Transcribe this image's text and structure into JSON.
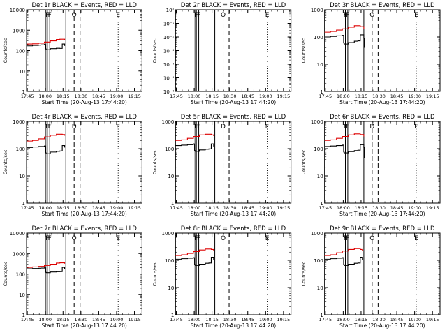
{
  "colors": {
    "events": "#000000",
    "lld": "#dd0000",
    "axis": "#000000",
    "background": "#ffffff"
  },
  "chart_data": [
    {
      "type": "line",
      "title": "Det 1r  BLACK = Events, RED = LLD",
      "ylabel": "Counts/sec",
      "xlabel": "Start Time (20-Aug-13 17:44:20)",
      "x_ticks": [
        "17:45",
        "18:00",
        "18:15",
        "18:30",
        "18:45",
        "19:00",
        "19:15"
      ],
      "y_ticks": [
        "1",
        "10",
        "100",
        "1000",
        "10000"
      ],
      "ylim": [
        1,
        10000
      ],
      "xlim_minutes": [
        0,
        97
      ],
      "markers": [
        {
          "label": "F",
          "t": 17.5,
          "style": "solid"
        },
        {
          "label": "F",
          "t": 19.5,
          "style": "solid"
        },
        {
          "label": "",
          "t": 33,
          "style": "solid"
        },
        {
          "label": "O",
          "t": 40,
          "style": "dashed"
        },
        {
          "label": "",
          "t": 45,
          "style": "dashed"
        },
        {
          "label": "E",
          "t": 77,
          "style": "dotted"
        }
      ],
      "series": [
        {
          "name": "Events",
          "t": [
            0,
            5,
            10,
            12,
            15,
            16,
            16.5,
            20,
            25,
            28,
            30,
            32
          ],
          "values": [
            170,
            180,
            185,
            190,
            200,
            120,
            110,
            125,
            130,
            128,
            210,
            170
          ]
        },
        {
          "name": "LLD",
          "t": [
            0,
            5,
            10,
            15,
            20,
            25,
            28,
            32
          ],
          "values": [
            210,
            215,
            230,
            260,
            300,
            350,
            360,
            320
          ]
        }
      ]
    },
    {
      "type": "line",
      "title": "Det 2r  BLACK = Events, RED = LLD",
      "ylabel": "Counts/sec",
      "xlabel": "Start Time (20-Aug-13 17:44:20)",
      "x_ticks": [
        "17:45",
        "18:00",
        "18:15",
        "18:30",
        "18:45",
        "19:00",
        "19:15"
      ],
      "y_ticks": [
        "10⁻⁶",
        "10⁻⁵",
        "10⁻⁴",
        "10⁻³",
        "10⁻²",
        "10⁻¹",
        "10⁰"
      ],
      "ylim": [
        1e-06,
        1
      ],
      "xlim_minutes": [
        0,
        97
      ],
      "markers": [
        {
          "label": "F",
          "t": 17.5,
          "style": "solid"
        },
        {
          "label": "F",
          "t": 19.5,
          "style": "solid"
        },
        {
          "label": "",
          "t": 33,
          "style": "solid"
        },
        {
          "label": "O",
          "t": 40,
          "style": "dashed"
        },
        {
          "label": "",
          "t": 45,
          "style": "dashed"
        },
        {
          "label": "E",
          "t": 77,
          "style": "dotted"
        }
      ],
      "series": []
    },
    {
      "type": "line",
      "title": "Det 3r  BLACK = Events, RED = LLD",
      "ylabel": "Counts/sec",
      "xlabel": "Start Time (20-Aug-13 17:44:20)",
      "x_ticks": [
        "17:45",
        "18:00",
        "18:15",
        "18:30",
        "18:45",
        "19:00",
        "19:15"
      ],
      "y_ticks": [
        "1",
        "10",
        "100",
        "1000"
      ],
      "ylim": [
        1,
        1000
      ],
      "xlim_minutes": [
        0,
        97
      ],
      "markers": [
        {
          "label": "F",
          "t": 17.5,
          "style": "solid"
        },
        {
          "label": "F",
          "t": 19.5,
          "style": "solid"
        },
        {
          "label": "",
          "t": 33,
          "style": "solid"
        },
        {
          "label": "O",
          "t": 40,
          "style": "dashed"
        },
        {
          "label": "",
          "t": 45,
          "style": "dashed"
        },
        {
          "label": "E",
          "t": 77,
          "style": "dotted"
        }
      ],
      "series": [
        {
          "name": "Events",
          "t": [
            0,
            5,
            10,
            15,
            16,
            16.5,
            20,
            25,
            28,
            30,
            33,
            33.5
          ],
          "values": [
            100,
            105,
            110,
            115,
            60,
            55,
            62,
            70,
            72,
            120,
            90,
            40
          ]
        },
        {
          "name": "LLD",
          "t": [
            0,
            5,
            10,
            15,
            20,
            25,
            30,
            33
          ],
          "values": [
            150,
            160,
            180,
            200,
            230,
            260,
            240,
            200
          ]
        }
      ]
    },
    {
      "type": "line",
      "title": "Det 4r  BLACK = Events, RED = LLD",
      "ylabel": "Counts/sec",
      "xlabel": "Start Time (20-Aug-13 17:44:20)",
      "x_ticks": [
        "17:45",
        "18:00",
        "18:15",
        "18:30",
        "18:45",
        "19:00",
        "19:15"
      ],
      "y_ticks": [
        "1",
        "10",
        "100",
        "1000"
      ],
      "ylim": [
        1,
        1000
      ],
      "xlim_minutes": [
        0,
        97
      ],
      "markers": [
        {
          "label": "F",
          "t": 17.5,
          "style": "solid"
        },
        {
          "label": "F",
          "t": 19.5,
          "style": "solid"
        },
        {
          "label": "",
          "t": 33,
          "style": "solid"
        },
        {
          "label": "D",
          "t": 40,
          "style": "dashed"
        },
        {
          "label": "",
          "t": 45,
          "style": "dashed"
        },
        {
          "label": "E",
          "t": 77,
          "style": "dotted"
        }
      ],
      "series": [
        {
          "name": "Events",
          "t": [
            0,
            5,
            10,
            15,
            16,
            16.5,
            20,
            25,
            28,
            30,
            32
          ],
          "values": [
            110,
            115,
            120,
            125,
            70,
            65,
            75,
            80,
            82,
            130,
            110
          ]
        },
        {
          "name": "LLD",
          "t": [
            0,
            5,
            10,
            15,
            20,
            25,
            30,
            32
          ],
          "values": [
            190,
            200,
            230,
            270,
            310,
            340,
            330,
            300
          ]
        }
      ]
    },
    {
      "type": "line",
      "title": "Det 5r  BLACK = Events, RED = LLD",
      "ylabel": "Counts/sec",
      "xlabel": "Start Time (20-Aug-13 17:44:20)",
      "x_ticks": [
        "17:45",
        "18:00",
        "18:15",
        "18:30",
        "18:45",
        "19:00",
        "19:15"
      ],
      "y_ticks": [
        "1",
        "10",
        "100",
        "1000"
      ],
      "ylim": [
        1,
        1000
      ],
      "xlim_minutes": [
        0,
        97
      ],
      "markers": [
        {
          "label": "F",
          "t": 17.5,
          "style": "solid"
        },
        {
          "label": "F",
          "t": 19.5,
          "style": "solid"
        },
        {
          "label": "",
          "t": 33,
          "style": "solid"
        },
        {
          "label": "D",
          "t": 40,
          "style": "dashed"
        },
        {
          "label": "",
          "t": 45,
          "style": "dashed"
        },
        {
          "label": "E",
          "t": 77,
          "style": "dotted"
        }
      ],
      "series": [
        {
          "name": "Events",
          "t": [
            0,
            5,
            10,
            15,
            16,
            16.5,
            20,
            25,
            28,
            30,
            32
          ],
          "values": [
            130,
            135,
            140,
            150,
            85,
            80,
            90,
            95,
            98,
            150,
            120
          ]
        },
        {
          "name": "LLD",
          "t": [
            0,
            5,
            10,
            15,
            20,
            25,
            30,
            32
          ],
          "values": [
            200,
            210,
            240,
            280,
            320,
            340,
            320,
            290
          ]
        }
      ]
    },
    {
      "type": "line",
      "title": "Det 6r  BLACK = Events, RED = LLD",
      "ylabel": "Counts/sec",
      "xlabel": "Start Time (20-Aug-13 17:44:20)",
      "x_ticks": [
        "17:45",
        "18:00",
        "18:15",
        "18:30",
        "18:45",
        "19:00",
        "19:15"
      ],
      "y_ticks": [
        "1",
        "10",
        "100",
        "1000"
      ],
      "ylim": [
        1,
        1000
      ],
      "xlim_minutes": [
        0,
        97
      ],
      "markers": [
        {
          "label": "F",
          "t": 17.5,
          "style": "solid"
        },
        {
          "label": "F",
          "t": 19.5,
          "style": "solid"
        },
        {
          "label": "",
          "t": 33,
          "style": "solid"
        },
        {
          "label": "D",
          "t": 40,
          "style": "dashed"
        },
        {
          "label": "",
          "t": 45,
          "style": "dashed"
        },
        {
          "label": "E",
          "t": 77,
          "style": "dotted"
        }
      ],
      "series": [
        {
          "name": "Events",
          "t": [
            0,
            5,
            10,
            15,
            16,
            16.5,
            20,
            25,
            28,
            30,
            33,
            33.5
          ],
          "values": [
            120,
            125,
            130,
            135,
            75,
            70,
            78,
            85,
            88,
            140,
            110,
            45
          ]
        },
        {
          "name": "LLD",
          "t": [
            0,
            5,
            10,
            15,
            20,
            25,
            30,
            33
          ],
          "values": [
            200,
            210,
            240,
            280,
            320,
            350,
            330,
            280
          ]
        }
      ]
    },
    {
      "type": "line",
      "title": "Det 7r  BLACK = Events, RED = LLD",
      "ylabel": "Counts/sec",
      "xlabel": "Start Time (20-Aug-13 17:44:20)",
      "x_ticks": [
        "17:45",
        "18:00",
        "18:15",
        "18:30",
        "18:45",
        "19:00",
        "19:15"
      ],
      "y_ticks": [
        "1",
        "10",
        "100",
        "1000",
        "10000"
      ],
      "ylim": [
        1,
        10000
      ],
      "xlim_minutes": [
        0,
        97
      ],
      "markers": [
        {
          "label": "F",
          "t": 17.5,
          "style": "solid"
        },
        {
          "label": "F",
          "t": 19.5,
          "style": "solid"
        },
        {
          "label": "",
          "t": 33,
          "style": "solid"
        },
        {
          "label": "O",
          "t": 40,
          "style": "dashed"
        },
        {
          "label": "",
          "t": 45,
          "style": "dashed"
        },
        {
          "label": "E",
          "t": 77,
          "style": "dotted"
        }
      ],
      "series": [
        {
          "name": "Events",
          "t": [
            0,
            5,
            10,
            12,
            15,
            16,
            16.5,
            20,
            25,
            28,
            30,
            32
          ],
          "values": [
            180,
            185,
            190,
            195,
            200,
            120,
            115,
            125,
            128,
            130,
            210,
            170
          ]
        },
        {
          "name": "LLD",
          "t": [
            0,
            5,
            10,
            15,
            20,
            25,
            28,
            32
          ],
          "values": [
            210,
            220,
            235,
            260,
            300,
            340,
            350,
            320
          ]
        }
      ]
    },
    {
      "type": "line",
      "title": "Det 8r  BLACK = Events, RED = LLD",
      "ylabel": "Counts/sec",
      "xlabel": "Start Time (20-Aug-13 17:44:20)",
      "x_ticks": [
        "17:45",
        "18:00",
        "18:15",
        "18:30",
        "18:45",
        "19:00",
        "19:15"
      ],
      "y_ticks": [
        "1",
        "10",
        "100",
        "1000"
      ],
      "ylim": [
        1,
        1000
      ],
      "xlim_minutes": [
        0,
        97
      ],
      "markers": [
        {
          "label": "F",
          "t": 17.5,
          "style": "solid"
        },
        {
          "label": "F",
          "t": 19.5,
          "style": "solid"
        },
        {
          "label": "",
          "t": 33,
          "style": "solid"
        },
        {
          "label": "O",
          "t": 40,
          "style": "dashed"
        },
        {
          "label": "",
          "t": 45,
          "style": "dashed"
        },
        {
          "label": "E",
          "t": 77,
          "style": "dotted"
        }
      ],
      "series": [
        {
          "name": "Events",
          "t": [
            0,
            5,
            10,
            15,
            16,
            16.5,
            20,
            25,
            28,
            30,
            32
          ],
          "values": [
            110,
            115,
            120,
            125,
            70,
            65,
            72,
            78,
            80,
            130,
            100
          ]
        },
        {
          "name": "LLD",
          "t": [
            0,
            5,
            10,
            15,
            20,
            25,
            30,
            32
          ],
          "values": [
            150,
            160,
            180,
            210,
            240,
            260,
            250,
            220
          ]
        }
      ]
    },
    {
      "type": "line",
      "title": "Det 9r  BLACK = Events, RED = LLD",
      "ylabel": "Counts/sec",
      "xlabel": "Start Time (20-Aug-13 17:44:20)",
      "x_ticks": [
        "17:45",
        "18:00",
        "18:15",
        "18:30",
        "18:45",
        "19:00",
        "19:15"
      ],
      "y_ticks": [
        "1",
        "10",
        "100",
        "1000"
      ],
      "ylim": [
        1,
        1000
      ],
      "xlim_minutes": [
        0,
        97
      ],
      "markers": [
        {
          "label": "F",
          "t": 17.5,
          "style": "solid"
        },
        {
          "label": "F",
          "t": 19.5,
          "style": "solid"
        },
        {
          "label": "",
          "t": 33,
          "style": "solid"
        },
        {
          "label": "O",
          "t": 40,
          "style": "dashed"
        },
        {
          "label": "",
          "t": 45,
          "style": "dashed"
        },
        {
          "label": "E",
          "t": 77,
          "style": "dotted"
        }
      ],
      "series": [
        {
          "name": "Events",
          "t": [
            0,
            5,
            10,
            15,
            16,
            16.5,
            20,
            25,
            28,
            30,
            32
          ],
          "values": [
            110,
            115,
            120,
            125,
            70,
            65,
            72,
            78,
            80,
            130,
            100
          ]
        },
        {
          "name": "LLD",
          "t": [
            0,
            5,
            10,
            15,
            20,
            25,
            30,
            32
          ],
          "values": [
            150,
            160,
            190,
            220,
            250,
            270,
            250,
            220
          ]
        }
      ]
    }
  ]
}
